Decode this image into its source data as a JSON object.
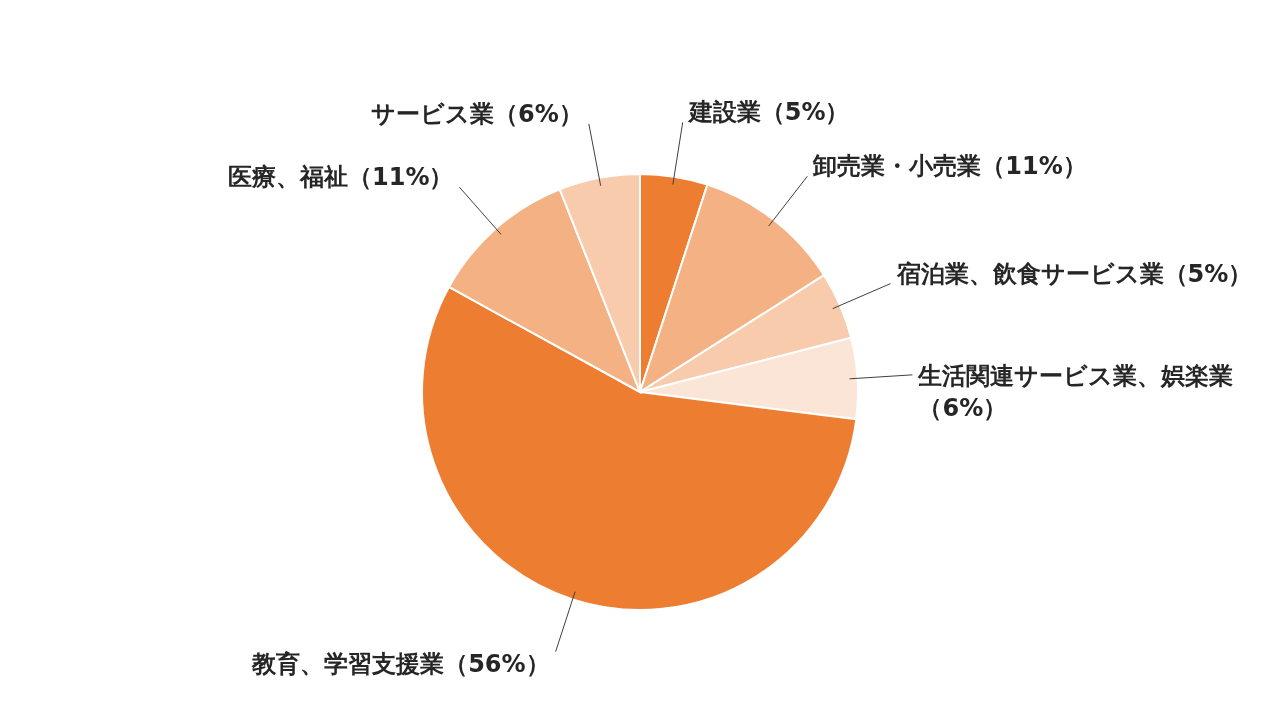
{
  "chart_data": {
    "type": "pie",
    "categories": [
      "建設業",
      "卸売業・小売業",
      "宿泊業、飲食サービス業",
      "生活関連サービス業、娯楽業",
      "教育、学習支援業",
      "医療、福祉",
      "サービス業"
    ],
    "values": [
      5,
      11,
      5,
      6,
      56,
      11,
      6
    ],
    "value_labels": [
      "（5%）",
      "（11%）",
      "（5%）",
      "（6%）",
      "（56%）",
      "（11%）",
      "（6%）"
    ],
    "colors": [
      "#ed7d31",
      "#f4b183",
      "#f8cbad",
      "#fbe5d6",
      "#ed7d31",
      "#f4b183",
      "#f8cbad"
    ]
  }
}
